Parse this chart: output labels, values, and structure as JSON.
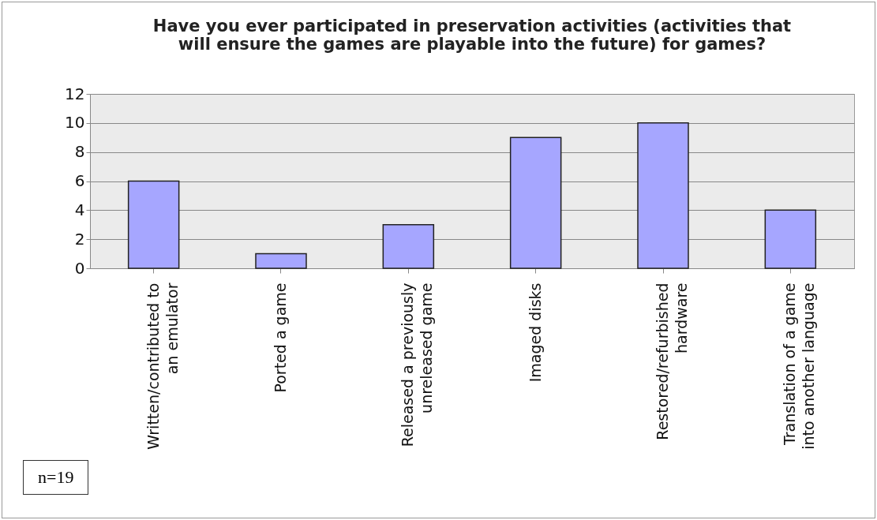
{
  "chart_data": {
    "type": "bar",
    "title": "Have you ever participated in preservation activities (activities that\nwill ensure the games are playable into the future) for games?",
    "categories": [
      "Written/contributed to\nan emulator",
      "Ported a game",
      "Released a previously\nunreleased game",
      "Imaged disks",
      "Restored/refurbished\nhardware",
      "Translation of a game\ninto another language"
    ],
    "values": [
      6,
      1,
      3,
      9,
      10,
      4
    ],
    "color": "#a6a6ff",
    "ylim": [
      0,
      12
    ],
    "yticks": [
      0,
      2,
      4,
      6,
      8,
      10,
      12
    ],
    "grid": "y",
    "annotations": [
      "n=19"
    ]
  }
}
